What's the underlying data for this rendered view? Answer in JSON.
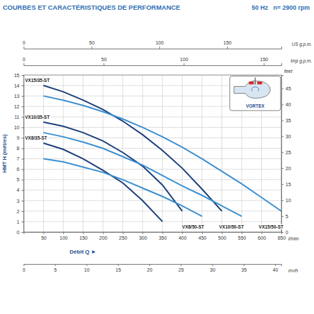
{
  "chart_data": {
    "type": "line",
    "title": "COURBES ET CARACTÉRISTIQUES DE PERFORMANCE",
    "subtitle": "50 Hz   n= 2900 rpm",
    "x_label": "Débit Q ►",
    "x_unit_label": "l/min",
    "y_label": "HMT H (mètres)",
    "y2_label": "feet",
    "xlim": [
      0,
      650
    ],
    "xticks": [
      50,
      100,
      150,
      200,
      250,
      300,
      350,
      400,
      450,
      500,
      550,
      600,
      650
    ],
    "ylim": [
      0,
      15
    ],
    "yticks": [
      0,
      1,
      2,
      3,
      4,
      5,
      6,
      7,
      8,
      9,
      10,
      11,
      12,
      13,
      14,
      15
    ],
    "y2lim": [
      0,
      49.21
    ],
    "y2ticks": [
      0,
      5,
      10,
      15,
      20,
      25,
      30,
      35,
      40,
      45
    ],
    "top_axes": [
      {
        "label": "US g.p.m.",
        "lim": [
          0,
          190
        ],
        "ticks": [
          0,
          50,
          100,
          150
        ]
      },
      {
        "label": "Imp g.p.m.",
        "lim": [
          0,
          161
        ],
        "ticks": [
          0,
          50,
          100,
          150
        ]
      }
    ],
    "bottom_axis2": {
      "label": "m³/h",
      "lim": [
        0,
        41
      ],
      "ticks": [
        0,
        5,
        10,
        15,
        20,
        25,
        30,
        35,
        40
      ]
    },
    "grid": true,
    "x": [
      50,
      100,
      150,
      200,
      250,
      300,
      350,
      400,
      450,
      500,
      550,
      600,
      650
    ],
    "series": [
      {
        "name": "VX15/35-ST",
        "color": "#1b3f7a",
        "line_style": "solid",
        "values": [
          14,
          13.4,
          12.6,
          11.7,
          10.6,
          9.3,
          7.8,
          6.1,
          4.1,
          2,
          null,
          null,
          null
        ]
      },
      {
        "name": "VX10/35-ST",
        "color": "#1b3f7a",
        "line_style": "solid",
        "values": [
          10.5,
          10.1,
          9.5,
          8.7,
          7.6,
          6.3,
          4.5,
          2,
          null,
          null,
          null,
          null,
          null
        ]
      },
      {
        "name": "VX8/35-ST",
        "color": "#1b3f7a",
        "line_style": "solid",
        "values": [
          8.5,
          7.9,
          7,
          5.9,
          4.7,
          3,
          1,
          null,
          null,
          null,
          null,
          null,
          null
        ]
      },
      {
        "name": "VX8/50-ST",
        "color": "#3b8fd0",
        "line_style": "solid",
        "values": [
          7,
          6.7,
          6.2,
          5.7,
          5,
          4.2,
          3.4,
          2.5,
          1.5,
          null,
          null,
          null,
          null
        ]
      },
      {
        "name": "VX10/50-ST",
        "color": "#3b8fd0",
        "line_style": "solid",
        "values": [
          9.5,
          9.1,
          8.6,
          8,
          7.2,
          6.4,
          5.4,
          4.4,
          3.5,
          2.5,
          1.5,
          null,
          null
        ]
      },
      {
        "name": "VX15/50-ST",
        "color": "#3b8fd0",
        "line_style": "solid",
        "values": [
          13,
          12.6,
          12.1,
          11.5,
          10.8,
          10,
          9.1,
          8.1,
          7,
          5.8,
          4.6,
          3.3,
          2
        ]
      }
    ],
    "annotations": [
      {
        "text": "VORTEX"
      }
    ]
  }
}
